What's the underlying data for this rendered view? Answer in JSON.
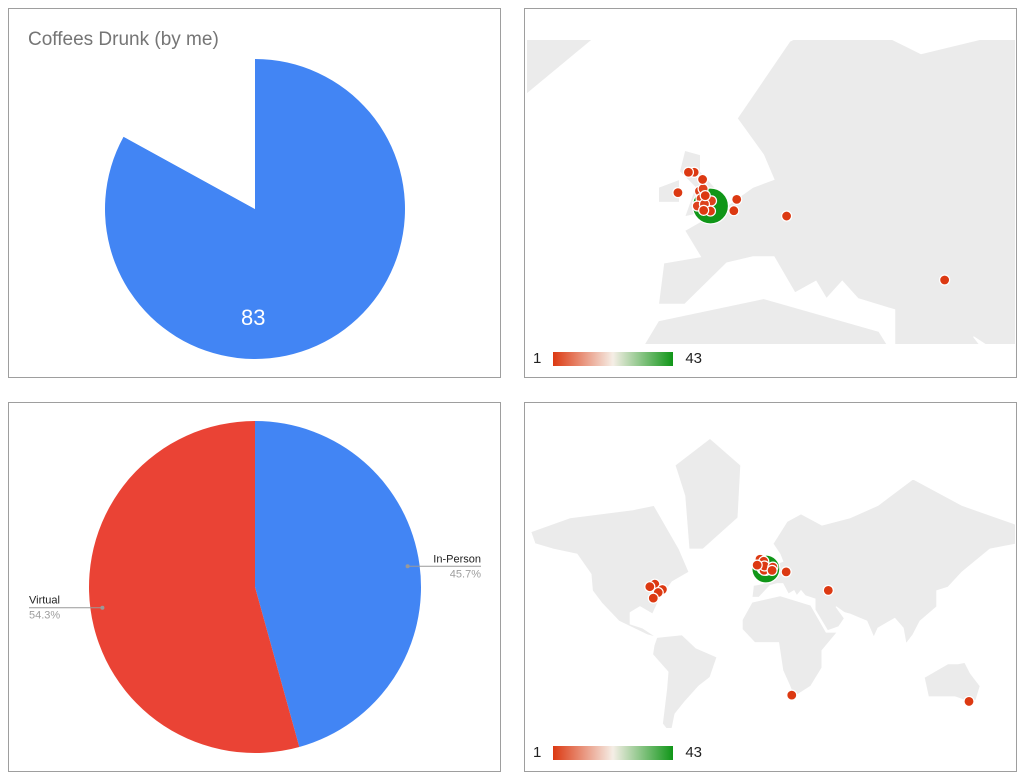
{
  "chart_data": [
    {
      "type": "pie",
      "title": "Coffees Drunk (by me)",
      "slices": [
        {
          "value": 83,
          "label": "83",
          "color": "#4285f4"
        },
        {
          "value": 17,
          "label": "",
          "color": "#ffffff"
        }
      ],
      "legend": "none"
    },
    {
      "type": "geo",
      "region": "Europe",
      "color_scale": {
        "min": 1,
        "max": 43,
        "min_color": "#dc3912",
        "mid_color": "#f5f5f5",
        "max_color": "#109618"
      },
      "legend": "bottom-left",
      "land_color": "#ebebeb"
    },
    {
      "type": "pie",
      "slices": [
        {
          "label": "In-Person",
          "value": 45.7,
          "display": "45.7%",
          "color": "#4285f4"
        },
        {
          "label": "Virtual",
          "value": 54.3,
          "display": "54.3%",
          "color": "#ea4335"
        }
      ],
      "legend": "labeled"
    },
    {
      "type": "geo",
      "region": "world",
      "color_scale": {
        "min": 1,
        "max": 43,
        "min_color": "#dc3912",
        "mid_color": "#f5f5f5",
        "max_color": "#109618"
      },
      "legend": "bottom-left",
      "land_color": "#ebebeb"
    }
  ],
  "markers": [
    {
      "lat": 51.5,
      "lon": -0.1,
      "value": 43
    },
    {
      "lat": 53.5,
      "lon": -2.2,
      "value": 2
    },
    {
      "lat": 53.8,
      "lon": -1.5,
      "value": 2
    },
    {
      "lat": 52.5,
      "lon": -1.9,
      "value": 2
    },
    {
      "lat": 55.9,
      "lon": -3.2,
      "value": 1
    },
    {
      "lat": 55.9,
      "lon": -4.3,
      "value": 1
    },
    {
      "lat": 51.5,
      "lon": -2.6,
      "value": 2
    },
    {
      "lat": 52.2,
      "lon": 0.1,
      "value": 2
    },
    {
      "lat": 51.75,
      "lon": -1.25,
      "value": 2
    },
    {
      "lat": 50.8,
      "lon": -0.1,
      "value": 1
    },
    {
      "lat": 55.0,
      "lon": -1.6,
      "value": 1
    },
    {
      "lat": 50.9,
      "lon": -1.4,
      "value": 1
    },
    {
      "lat": 52.9,
      "lon": -1.1,
      "value": 1
    },
    {
      "lat": 53.3,
      "lon": -6.3,
      "value": 1
    },
    {
      "lat": 52.4,
      "lon": 4.9,
      "value": 1
    },
    {
      "lat": 50.85,
      "lon": 4.35,
      "value": 1
    },
    {
      "lat": 50.1,
      "lon": 14.4,
      "value": 1
    },
    {
      "lat": 40.2,
      "lon": 44.5,
      "value": 1
    },
    {
      "lat": 43.7,
      "lon": -79.4,
      "value": 1
    },
    {
      "lat": 42.3,
      "lon": -83.0,
      "value": 1
    },
    {
      "lat": 40.7,
      "lon": -74.0,
      "value": 1
    },
    {
      "lat": 38.9,
      "lon": -77.0,
      "value": 1
    },
    {
      "lat": 35.5,
      "lon": -80.5,
      "value": 1
    },
    {
      "lat": -33.9,
      "lon": 18.4,
      "value": 1
    },
    {
      "lat": -37.8,
      "lon": 145.0,
      "value": 1
    }
  ],
  "legend": {
    "min_label": "1",
    "max_label": "43"
  }
}
